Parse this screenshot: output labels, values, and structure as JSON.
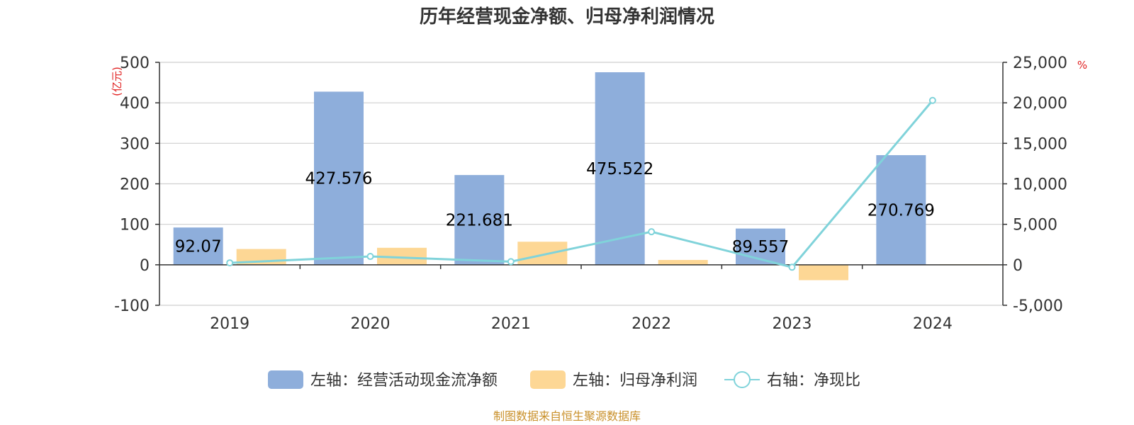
{
  "chart_data": {
    "type": "bar",
    "title": "历年经营现金净额、归母净利润情况",
    "categories": [
      "2019",
      "2020",
      "2021",
      "2022",
      "2023",
      "2024"
    ],
    "left_axis": {
      "unit": "(亿元)",
      "ylim": [
        -100,
        500
      ],
      "ticks": [
        "-100",
        "0",
        "100",
        "200",
        "300",
        "400",
        "500"
      ]
    },
    "right_axis": {
      "unit": "%",
      "ylim": [
        -5000,
        25000
      ],
      "ticks": [
        "-5,000",
        "0",
        "5,000",
        "10,000",
        "15,000",
        "20,000",
        "25,000"
      ]
    },
    "grid": true,
    "legend_position": "bottom",
    "series": [
      {
        "name": "左轴：经营活动现金流净额",
        "type": "bar",
        "axis": "left",
        "color": "#8eaedb",
        "values": [
          92.07,
          427.576,
          221.681,
          475.522,
          89.557,
          270.769
        ],
        "labels": [
          "92.07",
          "427.576",
          "221.681",
          "475.522",
          "89.557",
          "270.769"
        ]
      },
      {
        "name": "左轴：归母净利润",
        "type": "bar",
        "axis": "left",
        "color": "#fdd795",
        "values": [
          39,
          42,
          57,
          12,
          -38,
          1.5
        ]
      },
      {
        "name": "右轴：净现比",
        "type": "line",
        "axis": "right",
        "color": "#80d3da",
        "values": [
          240,
          1030,
          390,
          4080,
          -300,
          20300
        ]
      }
    ]
  },
  "source": "制图数据来自恒生聚源数据库"
}
